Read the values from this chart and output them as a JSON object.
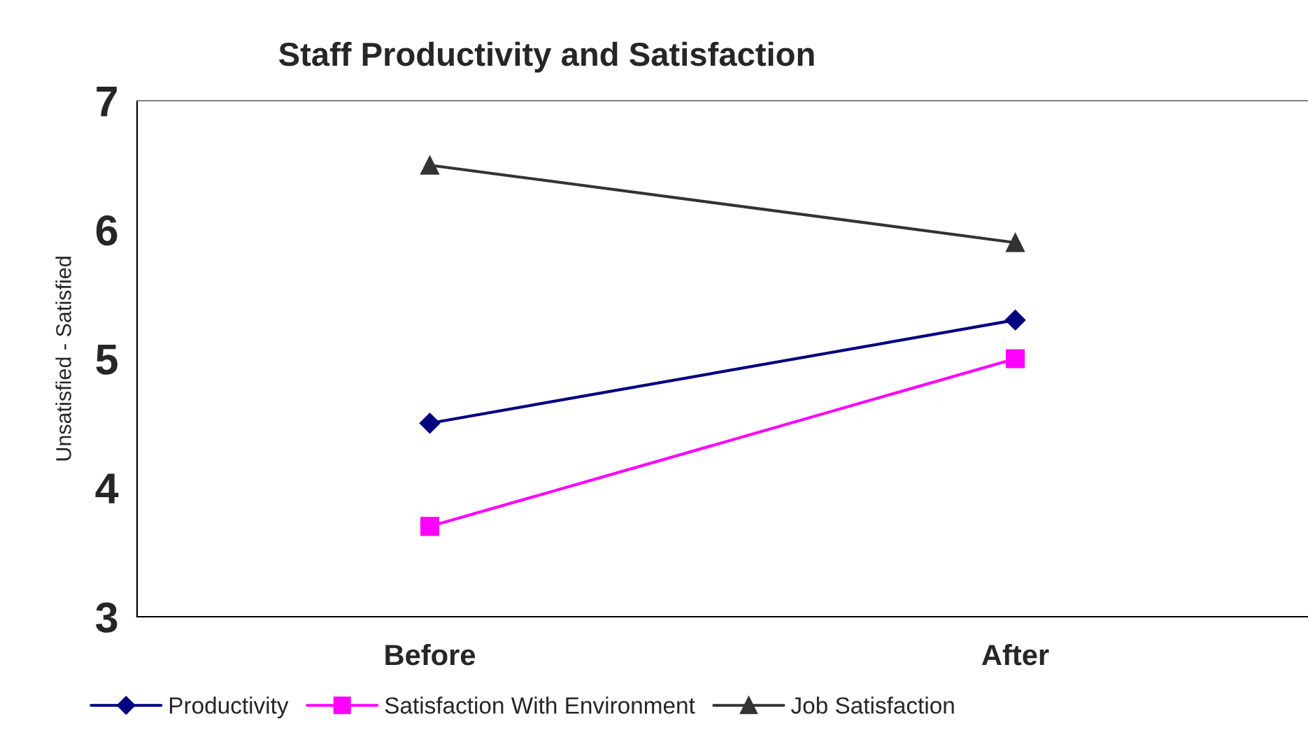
{
  "chart_data": {
    "type": "line",
    "title": "Staff Productivity and Satisfaction",
    "ylabel": "Unsatisfied - Satisfied",
    "categories": [
      "Before",
      "After"
    ],
    "series": [
      {
        "name": "Productivity",
        "color": "#000080",
        "marker": "diamond",
        "values": [
          4.5,
          5.3
        ]
      },
      {
        "name": "Satisfaction With Environment",
        "color": "#ff00ff",
        "marker": "square",
        "values": [
          3.7,
          5.0
        ]
      },
      {
        "name": "Job Satisfaction",
        "color": "#333333",
        "marker": "triangle",
        "values": [
          6.5,
          5.9
        ]
      }
    ],
    "ylim": [
      3,
      7
    ],
    "yticks": [
      3,
      4,
      5,
      6,
      7
    ],
    "grid": false,
    "legend": "bottom"
  }
}
